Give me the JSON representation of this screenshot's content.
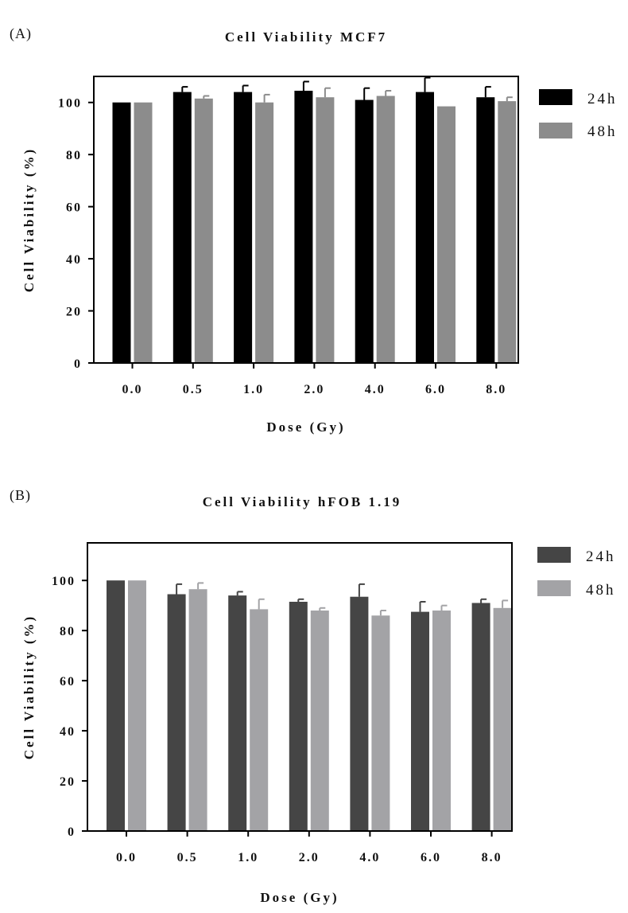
{
  "chart_data": [
    {
      "type": "bar",
      "panel_label": "(A)",
      "title": "Cell Viability MCF7",
      "xlabel": "Dose (Gy)",
      "ylabel": "Cell Viability (%)",
      "categories": [
        "0.0",
        "0.5",
        "1.0",
        "2.0",
        "4.0",
        "6.0",
        "8.0"
      ],
      "ylim": [
        0,
        110
      ],
      "yticks": [
        "0",
        "20",
        "40",
        "60",
        "80",
        "100"
      ],
      "grid": false,
      "legend_position": "right",
      "series": [
        {
          "name": "24h",
          "color": "#000000",
          "values": [
            100,
            104,
            104,
            104.5,
            101,
            104,
            102
          ],
          "errors": [
            0,
            2,
            2.5,
            3.5,
            4.5,
            5.5,
            4
          ]
        },
        {
          "name": "48h",
          "color": "#8c8c8c",
          "values": [
            100,
            101.5,
            100,
            102,
            102.5,
            98.5,
            100.5
          ],
          "errors": [
            0,
            1,
            3,
            3.5,
            2,
            0,
            1.5
          ]
        }
      ]
    },
    {
      "type": "bar",
      "panel_label": "(B)",
      "title": "Cell Viability hFOB 1.19",
      "xlabel": "Dose (Gy)",
      "ylabel": "Cell Viability (%)",
      "categories": [
        "0.0",
        "0.5",
        "1.0",
        "2.0",
        "4.0",
        "6.0",
        "8.0"
      ],
      "ylim": [
        0,
        115
      ],
      "yticks": [
        "0",
        "20",
        "40",
        "60",
        "80",
        "100"
      ],
      "grid": false,
      "legend_position": "right",
      "series": [
        {
          "name": "24h",
          "color": "#454545",
          "values": [
            100,
            94.5,
            94,
            91.5,
            93.5,
            87.5,
            91
          ],
          "errors": [
            0,
            4,
            1.5,
            1,
            5,
            4,
            1.5
          ]
        },
        {
          "name": "48h",
          "color": "#a3a3a6",
          "values": [
            100,
            96.5,
            88.5,
            88,
            86,
            88,
            89
          ],
          "errors": [
            0,
            2.5,
            4,
            1,
            2,
            2,
            3
          ]
        }
      ]
    }
  ]
}
